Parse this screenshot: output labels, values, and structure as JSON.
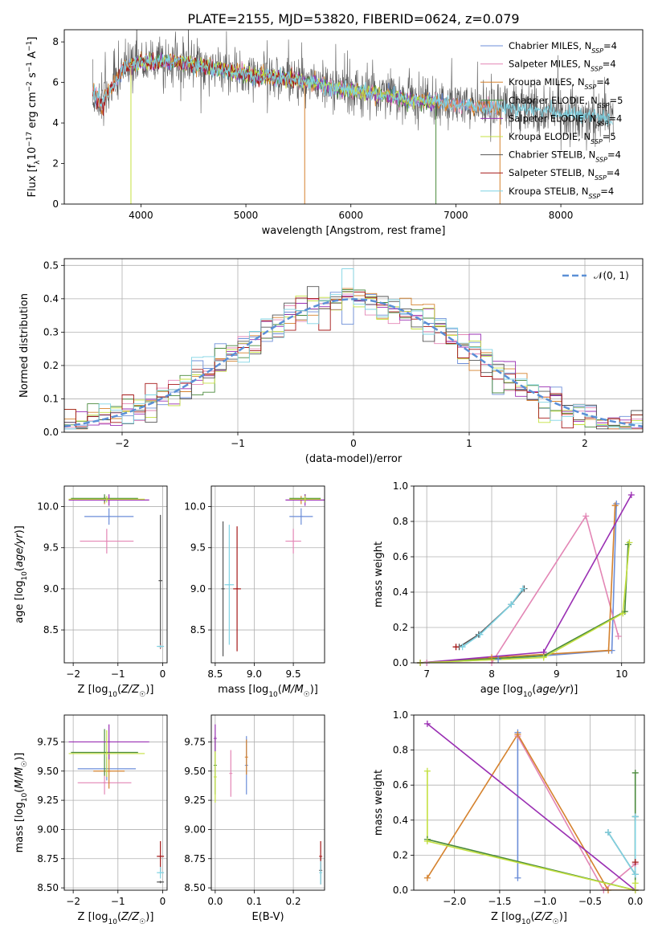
{
  "figure_title": "PLATE=2155, MJD=53820, FIBERID=0624, z=0.079",
  "colors": {
    "Chabrier MILES": "#6c8ed8",
    "Salpeter MILES": "#e386b5",
    "Kroupa MILES": "#d5822e",
    "Chabrier ELODIE": "#4a8a3c",
    "Salpeter ELODIE": "#9a2fb3",
    "Kroupa ELODIE": "#c4e040",
    "Chabrier STELIB": "#555555",
    "Salpeter STELIB": "#a51818",
    "Kroupa STELIB": "#7fd3e3"
  },
  "chart_data": [
    {
      "id": "spectrum",
      "type": "line",
      "xlabel": "wavelength [Angstrom, rest frame]",
      "ylabel": "Flux [f_λ 10^-17 erg cm^-2 s^-1 A^-1]",
      "xlim": [
        3270,
        8780
      ],
      "ylim": [
        0,
        8.6
      ],
      "xticks": [
        4000,
        5000,
        6000,
        7000,
        8000
      ],
      "yticks": [
        0,
        2,
        4,
        6,
        8
      ],
      "grid": false,
      "legend_position": "top-right",
      "legend": [
        {
          "name": "Chabrier MILES",
          "label": "Chabrier MILES, N_SSP=4"
        },
        {
          "name": "Salpeter MILES",
          "label": "Salpeter MILES, N_SSP=4"
        },
        {
          "name": "Kroupa MILES",
          "label": "Kroupa MILES, N_SSP=4"
        },
        {
          "name": "Chabrier ELODIE",
          "label": "Chabrier ELODIE, N_SSP=5"
        },
        {
          "name": "Salpeter ELODIE",
          "label": "Salpeter ELODIE, N_SSP=4"
        },
        {
          "name": "Kroupa ELODIE",
          "label": "Kroupa ELODIE, N_SSP=5"
        },
        {
          "name": "Chabrier STELIB",
          "label": "Chabrier STELIB, N_SSP=4"
        },
        {
          "name": "Salpeter STELIB",
          "label": "Salpeter STELIB, N_SSP=4"
        },
        {
          "name": "Kroupa STELIB",
          "label": "Kroupa STELIB, N_SSP=4"
        }
      ],
      "continuum": [
        [
          3550,
          5.0
        ],
        [
          3700,
          5.5
        ],
        [
          3850,
          6.8
        ],
        [
          4000,
          7.0
        ],
        [
          4200,
          7.0
        ],
        [
          4400,
          7.0
        ],
        [
          4600,
          6.8
        ],
        [
          4800,
          6.6
        ],
        [
          5000,
          6.4
        ],
        [
          5200,
          6.3
        ],
        [
          5400,
          6.2
        ],
        [
          5600,
          6.0
        ],
        [
          5800,
          5.8
        ],
        [
          6000,
          5.6
        ],
        [
          6200,
          5.5
        ],
        [
          6400,
          5.3
        ],
        [
          6600,
          5.1
        ],
        [
          6800,
          5.0
        ],
        [
          7000,
          4.9
        ],
        [
          7200,
          4.8
        ],
        [
          7400,
          4.75
        ],
        [
          7600,
          4.7
        ],
        [
          7800,
          4.6
        ],
        [
          8000,
          4.5
        ],
        [
          8200,
          4.4
        ],
        [
          8400,
          4.3
        ],
        [
          8500,
          4.2
        ]
      ]
    },
    {
      "id": "residual-histogram",
      "type": "histogram",
      "xlabel": "(data-model)/error",
      "ylabel": "Normed distribution",
      "xlim": [
        -2.5,
        2.5
      ],
      "ylim": [
        0,
        0.52
      ],
      "xticks": [
        -2,
        -1,
        0,
        1,
        2
      ],
      "yticks": [
        0.0,
        0.1,
        0.2,
        0.3,
        0.4,
        0.5
      ],
      "grid": true,
      "legend_position": "top-right",
      "legend_label": "𝒩(0, 1)",
      "reference_curve": "normal(0,1) pdf, dashed",
      "bin_width": 0.1
    },
    {
      "id": "age-vs-Z",
      "type": "scatter-errorbar",
      "xlabel": "Z [log10(Z/Z☉)]",
      "ylabel": "age [log10(age/yr)]",
      "xlim": [
        -2.2,
        0.1
      ],
      "ylim": [
        8.1,
        10.25
      ],
      "xticks": [
        -2,
        -1,
        0
      ],
      "yticks": [
        8.5,
        9.0,
        9.5,
        10.0
      ],
      "points": [
        {
          "model": "Chabrier MILES",
          "x": -1.2,
          "xerr": 0.55,
          "y": 9.88,
          "yerr": 0.1
        },
        {
          "model": "Salpeter MILES",
          "x": -1.25,
          "xerr": 0.6,
          "y": 9.58,
          "yerr": 0.15
        },
        {
          "model": "Kroupa MILES",
          "x": -1.3,
          "xerr": 0.8,
          "y": 10.08,
          "yerr": 0.05
        },
        {
          "model": "Chabrier ELODIE",
          "x": -1.3,
          "xerr": 0.75,
          "y": 10.1,
          "yerr": 0.05
        },
        {
          "model": "Salpeter ELODIE",
          "x": -1.2,
          "xerr": 0.9,
          "y": 10.08,
          "yerr": 0.07
        },
        {
          "model": "Kroupa ELODIE",
          "x": -1.25,
          "xerr": 0.85,
          "y": 10.09,
          "yerr": 0.04
        },
        {
          "model": "Chabrier STELIB",
          "x": -0.05,
          "xerr": 0.04,
          "y": 9.1,
          "yerr": 0.8
        },
        {
          "model": "Salpeter STELIB",
          "x": -0.05,
          "xerr": 0.04,
          "y": 8.3,
          "yerr": 0.03
        },
        {
          "model": "Kroupa STELIB",
          "x": -0.05,
          "xerr": 0.08,
          "y": 8.3,
          "yerr": 0.02
        }
      ]
    },
    {
      "id": "age-vs-mass",
      "type": "scatter-errorbar",
      "xlabel": "mass [log10(M/M☉)]",
      "ylabel": "",
      "xlim": [
        8.45,
        9.9
      ],
      "ylim": [
        8.1,
        10.25
      ],
      "xticks": [
        8.5,
        9.0,
        9.5
      ],
      "yticks": [
        8.5,
        9.0,
        9.5,
        10.0
      ],
      "points": [
        {
          "model": "Chabrier MILES",
          "x": 9.6,
          "xerr": 0.15,
          "y": 9.88,
          "yerr": 0.1
        },
        {
          "model": "Salpeter MILES",
          "x": 9.5,
          "xerr": 0.1,
          "y": 9.58,
          "yerr": 0.15
        },
        {
          "model": "Kroupa MILES",
          "x": 9.6,
          "xerr": 0.15,
          "y": 10.08,
          "yerr": 0.05
        },
        {
          "model": "Chabrier ELODIE",
          "x": 9.65,
          "xerr": 0.2,
          "y": 10.1,
          "yerr": 0.05
        },
        {
          "model": "Salpeter ELODIE",
          "x": 9.65,
          "xerr": 0.25,
          "y": 10.08,
          "yerr": 0.07
        },
        {
          "model": "Kroupa ELODIE",
          "x": 9.65,
          "xerr": 0.2,
          "y": 10.09,
          "yerr": 0.04
        },
        {
          "model": "Chabrier STELIB",
          "x": 8.6,
          "xerr": 0.02,
          "y": 9.0,
          "yerr": 0.82
        },
        {
          "model": "Salpeter STELIB",
          "x": 8.78,
          "xerr": 0.05,
          "y": 9.0,
          "yerr": 0.76
        },
        {
          "model": "Kroupa STELIB",
          "x": 8.68,
          "xerr": 0.06,
          "y": 9.05,
          "yerr": 0.73
        }
      ]
    },
    {
      "id": "mass-weight-vs-age",
      "type": "line",
      "xlabel": "age [log10(age/yr)]",
      "ylabel": "mass weight",
      "xlim": [
        6.8,
        10.35
      ],
      "ylim": [
        0,
        1.0
      ],
      "xticks": [
        7,
        8,
        9,
        10
      ],
      "yticks": [
        0.0,
        0.2,
        0.4,
        0.6,
        0.8,
        1.0
      ],
      "grid": true,
      "series": [
        {
          "model": "Chabrier MILES",
          "x": [
            7.0,
            8.1,
            9.85,
            9.92
          ],
          "y": [
            0.0,
            0.02,
            0.07,
            0.9
          ]
        },
        {
          "model": "Salpeter MILES",
          "x": [
            7.0,
            8.0,
            9.45,
            9.95
          ],
          "y": [
            0.0,
            0.0,
            0.83,
            0.15
          ]
        },
        {
          "model": "Kroupa MILES",
          "x": [
            6.9,
            8.0,
            9.8,
            9.9
          ],
          "y": [
            0.0,
            0.03,
            0.07,
            0.89
          ]
        },
        {
          "model": "Chabrier ELODIE",
          "x": [
            6.9,
            8.8,
            10.05,
            10.1
          ],
          "y": [
            0.0,
            0.04,
            0.29,
            0.67
          ]
        },
        {
          "model": "Salpeter ELODIE",
          "x": [
            6.9,
            8.8,
            10.15
          ],
          "y": [
            0.0,
            0.06,
            0.95
          ]
        },
        {
          "model": "Kroupa ELODIE",
          "x": [
            6.9,
            8.8,
            10.02,
            10.12
          ],
          "y": [
            0.0,
            0.03,
            0.28,
            0.68
          ]
        },
        {
          "model": "Chabrier STELIB",
          "x": [
            7.5,
            7.8,
            8.3,
            8.5
          ],
          "y": [
            0.09,
            0.16,
            0.33,
            0.42
          ]
        },
        {
          "model": "Salpeter STELIB",
          "x": [
            7.45
          ],
          "y": [
            0.09
          ]
        },
        {
          "model": "Kroupa STELIB",
          "x": [
            7.55,
            7.82,
            8.3,
            8.48
          ],
          "y": [
            0.09,
            0.16,
            0.33,
            0.42
          ]
        }
      ]
    },
    {
      "id": "mass-vs-Z",
      "type": "scatter-errorbar",
      "xlabel": "Z [log10(Z/Z☉)]",
      "ylabel": "mass [log10(M/M☉)]",
      "xlim": [
        -2.2,
        0.1
      ],
      "ylim": [
        8.48,
        9.98
      ],
      "xticks": [
        -2,
        -1,
        0
      ],
      "yticks": [
        8.5,
        8.75,
        9.0,
        9.25,
        9.5,
        9.75
      ],
      "points": [
        {
          "model": "Chabrier MILES",
          "x": -1.25,
          "xerr": 0.65,
          "y": 9.52,
          "yerr": 0.1
        },
        {
          "model": "Salpeter MILES",
          "x": -1.3,
          "xerr": 0.6,
          "y": 9.4,
          "yerr": 0.1
        },
        {
          "model": "Kroupa MILES",
          "x": -1.2,
          "xerr": 0.35,
          "y": 9.5,
          "yerr": 0.15
        },
        {
          "model": "Chabrier ELODIE",
          "x": -1.3,
          "xerr": 0.75,
          "y": 9.66,
          "yerr": 0.2
        },
        {
          "model": "Salpeter ELODIE",
          "x": -1.2,
          "xerr": 0.9,
          "y": 9.75,
          "yerr": 0.15
        },
        {
          "model": "Kroupa ELODIE",
          "x": -1.25,
          "xerr": 0.85,
          "y": 9.65,
          "yerr": 0.2
        },
        {
          "model": "Chabrier STELIB",
          "x": -0.05,
          "xerr": 0.08,
          "y": 8.55,
          "yerr": 0.01
        },
        {
          "model": "Salpeter STELIB",
          "x": -0.05,
          "xerr": 0.08,
          "y": 8.77,
          "yerr": 0.13
        },
        {
          "model": "Kroupa STELIB",
          "x": -0.05,
          "xerr": 0.08,
          "y": 8.63,
          "yerr": 0.05
        }
      ]
    },
    {
      "id": "mass-vs-EBV",
      "type": "scatter-errorbar",
      "xlabel": "E(B-V)",
      "ylabel": "",
      "xlim": [
        -0.01,
        0.28
      ],
      "ylim": [
        8.48,
        9.98
      ],
      "xticks": [
        0.0,
        0.1,
        0.2
      ],
      "yticks": [
        8.5,
        8.75,
        9.0,
        9.25,
        9.5,
        9.75
      ],
      "points": [
        {
          "model": "Chabrier MILES",
          "x": 0.08,
          "y": 9.55,
          "yerr": 0.25
        },
        {
          "model": "Salpeter MILES",
          "x": 0.04,
          "y": 9.48,
          "yerr": 0.2
        },
        {
          "model": "Kroupa MILES",
          "x": 0.08,
          "y": 9.62,
          "yerr": 0.15
        },
        {
          "model": "Chabrier ELODIE",
          "x": 0.0,
          "y": 9.55,
          "yerr": 0.25
        },
        {
          "model": "Salpeter ELODIE",
          "x": 0.0,
          "y": 9.78,
          "yerr": 0.12
        },
        {
          "model": "Kroupa ELODIE",
          "x": 0.0,
          "y": 9.45,
          "yerr": 0.22
        },
        {
          "model": "Chabrier STELIB",
          "x": 0.27,
          "y": 8.65,
          "yerr": 0.12
        },
        {
          "model": "Salpeter STELIB",
          "x": 0.27,
          "y": 8.77,
          "yerr": 0.13
        },
        {
          "model": "Kroupa STELIB",
          "x": 0.27,
          "y": 8.63,
          "yerr": 0.1
        }
      ]
    },
    {
      "id": "mass-weight-vs-Z",
      "type": "line",
      "xlabel": "Z [log10(Z/Z☉)]",
      "ylabel": "mass weight",
      "xlim": [
        -2.45,
        0.1
      ],
      "ylim": [
        0,
        1.0
      ],
      "xticks": [
        -2.0,
        -1.5,
        -1.0,
        -0.5,
        0.0
      ],
      "yticks": [
        0.0,
        0.2,
        0.4,
        0.6,
        0.8,
        1.0
      ],
      "grid": true,
      "series": [
        {
          "model": "Chabrier MILES",
          "x": [
            -1.3,
            -1.3
          ],
          "y": [
            0.07,
            0.9
          ]
        },
        {
          "model": "Salpeter MILES",
          "x": [
            -1.3,
            -0.35,
            0.0
          ],
          "y": [
            0.88,
            0.0,
            0.15
          ]
        },
        {
          "model": "Kroupa MILES",
          "x": [
            -2.3,
            -1.3,
            -0.3,
            0.0
          ],
          "y": [
            0.07,
            0.89,
            0.0,
            0.0
          ]
        },
        {
          "model": "Chabrier ELODIE",
          "x": [
            -2.3,
            0.0,
            0.0
          ],
          "y": [
            0.29,
            0.0,
            0.67
          ]
        },
        {
          "model": "Salpeter ELODIE",
          "x": [
            -2.3,
            0.0
          ],
          "y": [
            0.95,
            0.0
          ]
        },
        {
          "model": "Kroupa ELODIE",
          "x": [
            -2.3,
            -2.3,
            0.0,
            0.0
          ],
          "y": [
            0.68,
            0.28,
            0.0,
            0.04
          ]
        },
        {
          "model": "Chabrier STELIB",
          "x": [
            -0.3,
            0.0,
            0.0
          ],
          "y": [
            0.33,
            0.09,
            0.42
          ]
        },
        {
          "model": "Salpeter STELIB",
          "x": [
            0.0
          ],
          "y": [
            0.16
          ]
        },
        {
          "model": "Kroupa STELIB",
          "x": [
            -0.3,
            0.0,
            0.0
          ],
          "y": [
            0.33,
            0.09,
            0.42
          ]
        }
      ]
    }
  ]
}
